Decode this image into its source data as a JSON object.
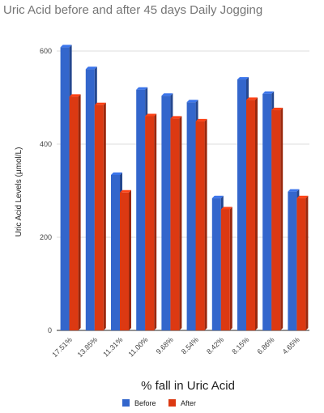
{
  "chart_data": {
    "type": "bar",
    "title": "Uric Acid before and after 45 days Daily Jogging",
    "xlabel": "% fall in Uric Acid",
    "ylabel": "Uric Acid Levels (μmol/L)",
    "ylim": [
      0,
      600
    ],
    "yticks": [
      "0",
      "200",
      "400",
      "600"
    ],
    "ytick_values": [
      0,
      200,
      400,
      600
    ],
    "grid": true,
    "legend_position": "bottom",
    "categories": [
      "17.51%",
      "13.85%",
      "11.31%",
      "11.00%",
      "9.68%",
      "8.54%",
      "8.42%",
      "8.15%",
      "6.86%",
      "4.65%"
    ],
    "series": [
      {
        "name": "Before",
        "color": "#3366cc",
        "values": [
          608,
          561,
          334,
          517,
          504,
          490,
          284,
          539,
          508,
          298
        ]
      },
      {
        "name": "After",
        "color": "#dc3912",
        "values": [
          502,
          484,
          296,
          460,
          455,
          449,
          260,
          495,
          473,
          284
        ]
      }
    ]
  }
}
